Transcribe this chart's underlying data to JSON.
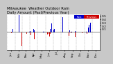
{
  "title": "Milwaukee  Weather Outdoor Rain\nDaily Amount (Past/Previous Year)",
  "title_fontsize": 3.8,
  "background_color": "#c8c8c8",
  "plot_bg_color": "#ffffff",
  "n_days": 365,
  "ylim": [
    -0.55,
    0.55
  ],
  "ylabel_fontsize": 3.2,
  "xlabel_fontsize": 2.8,
  "legend_labels": [
    "Past",
    "Previous"
  ],
  "current_color": "#0000cc",
  "previous_color": "#cc0000",
  "bar_width": 0.9,
  "seed": 42,
  "yticks": [
    0.1,
    0.2,
    0.3,
    0.4,
    0.5
  ],
  "month_labels": [
    "Jan",
    "Feb",
    "Mar",
    "Apr",
    "May",
    "Jun",
    "Jul",
    "Aug",
    "Sep",
    "Oct",
    "Nov",
    "Dec"
  ],
  "month_centers": [
    15,
    46,
    74,
    105,
    135,
    166,
    196,
    227,
    258,
    288,
    319,
    349
  ],
  "month_starts": [
    0,
    31,
    59,
    90,
    120,
    151,
    181,
    212,
    243,
    273,
    304,
    334
  ]
}
